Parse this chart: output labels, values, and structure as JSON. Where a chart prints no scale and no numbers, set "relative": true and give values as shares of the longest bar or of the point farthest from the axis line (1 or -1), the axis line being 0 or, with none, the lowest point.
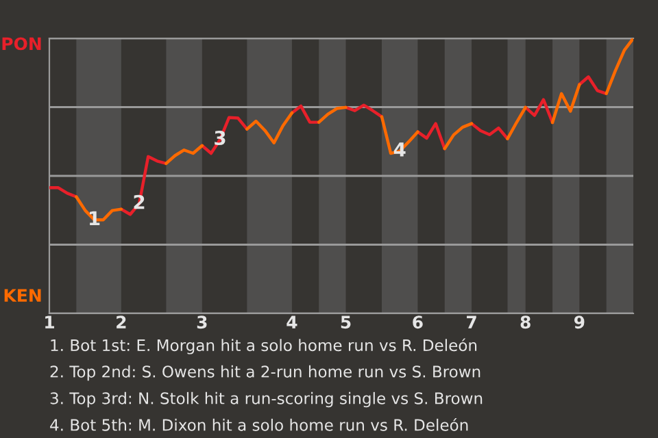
{
  "chart_data": {
    "type": "line",
    "relative": true,
    "categories": [
      "1",
      null,
      null,
      null,
      null,
      null,
      null,
      null,
      "2",
      null,
      null,
      null,
      null,
      null,
      null,
      null,
      null,
      "3",
      null,
      null,
      null,
      null,
      null,
      null,
      null,
      null,
      null,
      "4",
      null,
      null,
      null,
      null,
      null,
      "5",
      null,
      null,
      null,
      null,
      null,
      null,
      null,
      "6",
      null,
      null,
      null,
      null,
      null,
      "7",
      null,
      null,
      null,
      null,
      null,
      "8",
      null,
      null,
      null,
      null,
      null,
      "9",
      null,
      null,
      null,
      null,
      null,
      null
    ],
    "grid": "y",
    "marker": "none",
    "line_style": "solid",
    "series": [
      {
        "color": "#e8202a",
        "values": [
          0.457,
          0.457,
          0.437,
          0.424,
          null,
          null,
          null,
          null,
          0.379,
          0.36,
          0.399,
          0.57,
          0.554,
          0.545,
          null,
          null,
          null,
          0.61,
          0.582,
          0.632,
          0.712,
          0.71,
          0.67,
          null,
          null,
          null,
          null,
          0.729,
          0.754,
          0.695,
          0.695,
          null,
          null,
          0.749,
          0.737,
          0.757,
          0.737,
          0.715,
          null,
          null,
          null,
          0.66,
          0.637,
          0.69,
          0.599,
          null,
          null,
          0.69,
          0.664,
          0.65,
          0.674,
          0.635,
          null,
          0.749,
          0.72,
          0.777,
          0.694,
          null,
          null,
          0.832,
          0.86,
          0.81,
          0.799,
          null,
          null,
          null
        ],
        "name": null
      },
      {
        "color": "#ff6a00",
        "values": [
          null,
          null,
          null,
          0.424,
          0.374,
          0.34,
          0.34,
          0.374,
          0.379,
          null,
          null,
          null,
          null,
          0.545,
          0.574,
          0.594,
          0.582,
          0.61,
          null,
          null,
          null,
          null,
          0.67,
          0.699,
          0.665,
          0.62,
          0.682,
          0.729,
          null,
          null,
          0.695,
          0.724,
          0.745,
          0.749,
          null,
          null,
          null,
          0.715,
          0.582,
          0.59,
          0.624,
          0.66,
          null,
          null,
          0.599,
          0.649,
          0.677,
          0.69,
          null,
          null,
          null,
          0.635,
          0.694,
          0.749,
          null,
          null,
          0.694,
          0.799,
          0.735,
          0.832,
          null,
          null,
          0.799,
          0.882,
          0.957,
          1.0
        ],
        "name": null
      }
    ],
    "annotations": [
      {
        "text": "1",
        "y": 0.34
      },
      {
        "text": "2",
        "y": 0.399
      },
      {
        "text": "3",
        "y": 0.632
      },
      {
        "text": "4",
        "y": 0.59
      },
      "PON",
      "KEN",
      "1. Bot 1st: E. Morgan hit a solo home run vs R. Deleón",
      "2. Top 2nd: S. Owens hit a 2-run home run vs S. Brown",
      "3. Top 3rd: N. Stolk hit a run-scoring single vs S. Brown",
      "4. Bot 5th: M. Dixon hit a solo home run vs R. Deleón"
    ]
  }
}
